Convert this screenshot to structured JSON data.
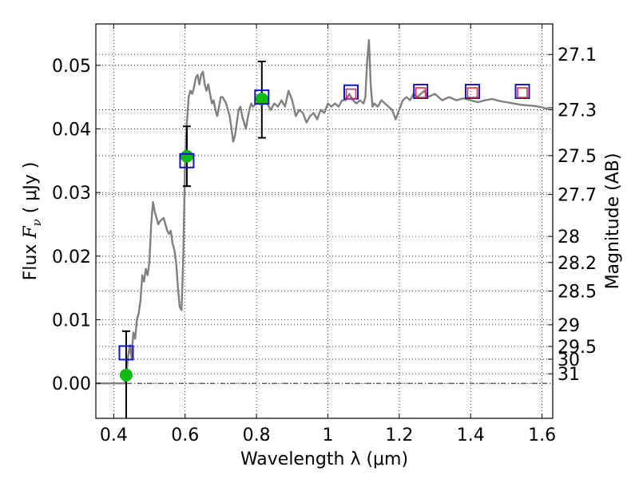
{
  "chart_data": {
    "type": "scatter",
    "xlabel": "Wavelength  λ (μm)",
    "ylabel_prefix": "Flux  ",
    "ylabel_symbol": "F",
    "ylabel_subscript": "ν",
    "ylabel_suffix": "  ( μJy )",
    "y2label": "Magnitude (AB)",
    "xlim": [
      0.35,
      1.63
    ],
    "ylim": [
      -0.0055,
      0.0565
    ],
    "grid": true,
    "xticks": [
      {
        "value": 0.4,
        "label": "0.4"
      },
      {
        "value": 0.6,
        "label": "0.6"
      },
      {
        "value": 0.8,
        "label": "0.8"
      },
      {
        "value": 1.0,
        "label": "1"
      },
      {
        "value": 1.2,
        "label": "1.2"
      },
      {
        "value": 1.4,
        "label": "1.4"
      },
      {
        "value": 1.6,
        "label": "1.6"
      }
    ],
    "yticks": [
      {
        "value": 0.0,
        "label": "0.00"
      },
      {
        "value": 0.01,
        "label": "0.01"
      },
      {
        "value": 0.02,
        "label": "0.02"
      },
      {
        "value": 0.03,
        "label": "0.03"
      },
      {
        "value": 0.04,
        "label": "0.04"
      },
      {
        "value": 0.05,
        "label": "0.05"
      }
    ],
    "mag_ticks": [
      {
        "label": "27.1",
        "flux": 0.0517
      },
      {
        "label": "27.3",
        "flux": 0.043
      },
      {
        "label": "27.5",
        "flux": 0.0358
      },
      {
        "label": "27.7",
        "flux": 0.0297
      },
      {
        "label": "28",
        "flux": 0.0231
      },
      {
        "label": "28.2",
        "flux": 0.019
      },
      {
        "label": "28.5",
        "flux": 0.0145
      },
      {
        "label": "29",
        "flux": 0.0092
      },
      {
        "label": "29.5",
        "flux": 0.0058
      },
      {
        "label": "30",
        "flux": 0.0038
      },
      {
        "label": "31",
        "flux": 0.0015
      }
    ],
    "series": [
      {
        "style": "line",
        "color": "#808080",
        "points": [
          [
            0.35,
            0.0
          ],
          [
            0.43,
            0.0
          ],
          [
            0.435,
            0.001
          ],
          [
            0.44,
            0.004
          ],
          [
            0.445,
            0.006
          ],
          [
            0.45,
            0.004
          ],
          [
            0.455,
            0.008
          ],
          [
            0.46,
            0.007
          ],
          [
            0.465,
            0.01
          ],
          [
            0.47,
            0.011
          ],
          [
            0.475,
            0.013
          ],
          [
            0.48,
            0.017
          ],
          [
            0.485,
            0.016
          ],
          [
            0.49,
            0.018
          ],
          [
            0.495,
            0.017
          ],
          [
            0.5,
            0.019
          ],
          [
            0.505,
            0.025
          ],
          [
            0.51,
            0.0285
          ],
          [
            0.515,
            0.027
          ],
          [
            0.52,
            0.026
          ],
          [
            0.525,
            0.025
          ],
          [
            0.53,
            0.0255
          ],
          [
            0.54,
            0.026
          ],
          [
            0.545,
            0.025
          ],
          [
            0.55,
            0.024
          ],
          [
            0.555,
            0.0235
          ],
          [
            0.56,
            0.024
          ],
          [
            0.565,
            0.022
          ],
          [
            0.57,
            0.021
          ],
          [
            0.575,
            0.019
          ],
          [
            0.58,
            0.015
          ],
          [
            0.585,
            0.012
          ],
          [
            0.59,
            0.0115
          ],
          [
            0.595,
            0.02
          ],
          [
            0.6,
            0.035
          ],
          [
            0.605,
            0.041
          ],
          [
            0.61,
            0.045
          ],
          [
            0.615,
            0.046
          ],
          [
            0.62,
            0.0455
          ],
          [
            0.625,
            0.0465
          ],
          [
            0.63,
            0.048
          ],
          [
            0.635,
            0.0485
          ],
          [
            0.64,
            0.047
          ],
          [
            0.645,
            0.0485
          ],
          [
            0.65,
            0.049
          ],
          [
            0.655,
            0.047
          ],
          [
            0.66,
            0.046
          ],
          [
            0.665,
            0.047
          ],
          [
            0.67,
            0.0455
          ],
          [
            0.675,
            0.044
          ],
          [
            0.68,
            0.0445
          ],
          [
            0.685,
            0.043
          ],
          [
            0.69,
            0.042
          ],
          [
            0.695,
            0.0435
          ],
          [
            0.7,
            0.045
          ],
          [
            0.705,
            0.045
          ],
          [
            0.71,
            0.0445
          ],
          [
            0.715,
            0.044
          ],
          [
            0.72,
            0.043
          ],
          [
            0.725,
            0.042
          ],
          [
            0.73,
            0.04
          ],
          [
            0.735,
            0.038
          ],
          [
            0.74,
            0.039
          ],
          [
            0.745,
            0.041
          ],
          [
            0.75,
            0.043
          ],
          [
            0.755,
            0.0435
          ],
          [
            0.76,
            0.042
          ],
          [
            0.765,
            0.041
          ],
          [
            0.77,
            0.04
          ],
          [
            0.775,
            0.0415
          ],
          [
            0.78,
            0.043
          ],
          [
            0.785,
            0.044
          ],
          [
            0.79,
            0.0435
          ],
          [
            0.8,
            0.044
          ],
          [
            0.81,
            0.0445
          ],
          [
            0.82,
            0.045
          ],
          [
            0.83,
            0.044
          ],
          [
            0.84,
            0.043
          ],
          [
            0.85,
            0.044
          ],
          [
            0.86,
            0.0435
          ],
          [
            0.87,
            0.0445
          ],
          [
            0.88,
            0.0435
          ],
          [
            0.89,
            0.046
          ],
          [
            0.9,
            0.0445
          ],
          [
            0.91,
            0.042
          ],
          [
            0.92,
            0.043
          ],
          [
            0.93,
            0.0425
          ],
          [
            0.94,
            0.041
          ],
          [
            0.95,
            0.042
          ],
          [
            0.96,
            0.0425
          ],
          [
            0.97,
            0.0415
          ],
          [
            0.98,
            0.043
          ],
          [
            0.99,
            0.0425
          ],
          [
            1.0,
            0.044
          ],
          [
            1.01,
            0.0435
          ],
          [
            1.02,
            0.044
          ],
          [
            1.03,
            0.0435
          ],
          [
            1.04,
            0.0445
          ],
          [
            1.05,
            0.0445
          ],
          [
            1.06,
            0.0455
          ],
          [
            1.07,
            0.0445
          ],
          [
            1.08,
            0.044
          ],
          [
            1.09,
            0.0445
          ],
          [
            1.1,
            0.044
          ],
          [
            1.105,
            0.045
          ],
          [
            1.11,
            0.0505
          ],
          [
            1.115,
            0.054
          ],
          [
            1.12,
            0.047
          ],
          [
            1.125,
            0.0435
          ],
          [
            1.13,
            0.044
          ],
          [
            1.14,
            0.0435
          ],
          [
            1.15,
            0.0445
          ],
          [
            1.16,
            0.044
          ],
          [
            1.17,
            0.0435
          ],
          [
            1.18,
            0.043
          ],
          [
            1.19,
            0.0415
          ],
          [
            1.2,
            0.043
          ],
          [
            1.21,
            0.0445
          ],
          [
            1.22,
            0.045
          ],
          [
            1.23,
            0.0445
          ],
          [
            1.24,
            0.0455
          ],
          [
            1.25,
            0.045
          ],
          [
            1.26,
            0.0455
          ],
          [
            1.27,
            0.046
          ],
          [
            1.28,
            0.045
          ],
          [
            1.3,
            0.0455
          ],
          [
            1.32,
            0.0445
          ],
          [
            1.34,
            0.045
          ],
          [
            1.36,
            0.0445
          ],
          [
            1.38,
            0.0448
          ],
          [
            1.4,
            0.0445
          ],
          [
            1.42,
            0.0442
          ],
          [
            1.44,
            0.0445
          ],
          [
            1.46,
            0.0447
          ],
          [
            1.48,
            0.0444
          ],
          [
            1.5,
            0.0442
          ],
          [
            1.52,
            0.044
          ],
          [
            1.54,
            0.0438
          ],
          [
            1.56,
            0.0437
          ],
          [
            1.58,
            0.0436
          ],
          [
            1.6,
            0.0434
          ],
          [
            1.61,
            0.0432
          ],
          [
            1.62,
            0.0433
          ],
          [
            1.63,
            0.0433
          ]
        ]
      },
      {
        "style": "marker",
        "marker": "circle",
        "color": "#11bb11",
        "points": [
          [
            0.435,
            0.0013
          ],
          [
            0.605,
            0.0357
          ],
          [
            0.815,
            0.0447
          ]
        ]
      },
      {
        "style": "marker",
        "marker": "square",
        "color": "#1515c8",
        "points": [
          [
            0.435,
            0.0048
          ],
          [
            0.605,
            0.035
          ],
          [
            0.815,
            0.045
          ],
          [
            1.065,
            0.0458
          ],
          [
            1.26,
            0.0459
          ],
          [
            1.405,
            0.0459
          ],
          [
            1.545,
            0.0459
          ]
        ]
      },
      {
        "style": "marker",
        "marker": "square-small",
        "color": "#e0203c",
        "points": [
          [
            1.065,
            0.0455
          ],
          [
            1.26,
            0.0457
          ],
          [
            1.405,
            0.0457
          ],
          [
            1.545,
            0.0457
          ]
        ]
      }
    ],
    "error_bars": [
      {
        "x": 0.435,
        "low": -0.0055,
        "high": 0.0082
      },
      {
        "x": 0.605,
        "low": 0.031,
        "high": 0.0404
      },
      {
        "x": 0.815,
        "low": 0.0386,
        "high": 0.0506
      }
    ]
  }
}
